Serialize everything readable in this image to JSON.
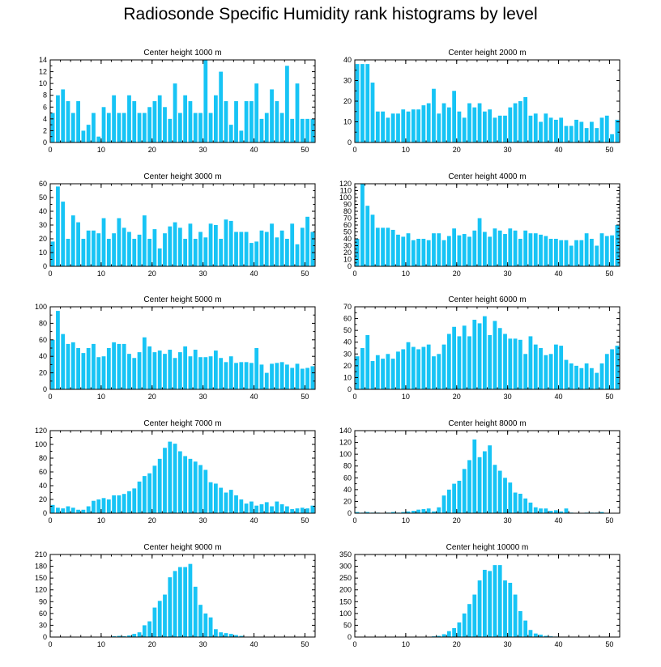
{
  "figure_title": "Radiosonde Specific Humidity rank histograms by level",
  "bar_color": "#17C4F5",
  "chart_data": [
    {
      "type": "bar",
      "title": "Center height 1000 m",
      "xlim": [
        0,
        52
      ],
      "xticks": [
        0,
        10,
        20,
        30,
        40,
        50
      ],
      "ylim": [
        0,
        14
      ],
      "yticks": [
        0,
        2,
        4,
        6,
        8,
        10,
        12,
        14
      ],
      "x": [
        0,
        1,
        2,
        3,
        4,
        5,
        6,
        7,
        8,
        9,
        10,
        11,
        12,
        13,
        14,
        15,
        16,
        17,
        18,
        19,
        20,
        21,
        22,
        23,
        24,
        25,
        26,
        27,
        28,
        29,
        30,
        31,
        32,
        33,
        34,
        35,
        36,
        37,
        38,
        39,
        40,
        41,
        42,
        43,
        44,
        45,
        46,
        47,
        48,
        49,
        50,
        51
      ],
      "values": [
        5,
        8,
        9,
        7,
        5,
        7,
        2,
        3,
        5,
        1,
        6,
        5,
        8,
        5,
        5,
        8,
        7,
        5,
        5,
        6,
        7,
        8,
        6,
        4,
        10,
        5,
        8,
        7,
        5,
        5,
        14,
        5,
        8,
        12,
        7,
        3,
        7,
        2,
        7,
        7,
        10,
        4,
        5,
        9,
        7,
        5,
        13,
        4,
        10,
        4,
        4,
        4
      ]
    },
    {
      "type": "bar",
      "title": "Center height 2000 m",
      "xlim": [
        0,
        52
      ],
      "xticks": [
        0,
        10,
        20,
        30,
        40,
        50
      ],
      "ylim": [
        0,
        40
      ],
      "yticks": [
        0,
        10,
        20,
        30,
        40
      ],
      "x": [
        0,
        1,
        2,
        3,
        4,
        5,
        6,
        7,
        8,
        9,
        10,
        11,
        12,
        13,
        14,
        15,
        16,
        17,
        18,
        19,
        20,
        21,
        22,
        23,
        24,
        25,
        26,
        27,
        28,
        29,
        30,
        31,
        32,
        33,
        34,
        35,
        36,
        37,
        38,
        39,
        40,
        41,
        42,
        43,
        44,
        45,
        46,
        47,
        48,
        49,
        50,
        51
      ],
      "values": [
        38,
        38,
        38,
        29,
        15,
        15,
        12,
        14,
        14,
        16,
        15,
        16,
        16,
        18,
        19,
        26,
        14,
        19,
        17,
        25,
        15,
        12,
        19,
        17,
        19,
        15,
        16,
        12,
        13,
        13,
        17,
        19,
        20,
        22,
        13,
        14,
        10,
        14,
        12,
        11,
        12,
        8,
        8,
        11,
        10,
        7,
        10,
        7,
        12,
        13,
        4,
        11
      ]
    },
    {
      "type": "bar",
      "title": "Center height 3000 m",
      "xlim": [
        0,
        52
      ],
      "xticks": [
        0,
        10,
        20,
        30,
        40,
        50
      ],
      "ylim": [
        0,
        60
      ],
      "yticks": [
        0,
        10,
        20,
        30,
        40,
        50,
        60
      ],
      "x": [
        0,
        1,
        2,
        3,
        4,
        5,
        6,
        7,
        8,
        9,
        10,
        11,
        12,
        13,
        14,
        15,
        16,
        17,
        18,
        19,
        20,
        21,
        22,
        23,
        24,
        25,
        26,
        27,
        28,
        29,
        30,
        31,
        32,
        33,
        34,
        35,
        36,
        37,
        38,
        39,
        40,
        41,
        42,
        43,
        44,
        45,
        46,
        47,
        48,
        49,
        50,
        51
      ],
      "values": [
        18,
        58,
        47,
        20,
        37,
        32,
        20,
        26,
        26,
        24,
        35,
        20,
        24,
        35,
        28,
        25,
        20,
        23,
        37,
        20,
        27,
        13,
        24,
        29,
        32,
        28,
        20,
        31,
        20,
        25,
        21,
        31,
        30,
        20,
        34,
        33,
        25,
        25,
        25,
        17,
        18,
        26,
        25,
        31,
        21,
        26,
        20,
        31,
        16,
        28,
        36,
        25
      ]
    },
    {
      "type": "bar",
      "title": "Center height 4000 m",
      "xlim": [
        0,
        52
      ],
      "xticks": [
        0,
        10,
        20,
        30,
        40,
        50
      ],
      "ylim": [
        0,
        120
      ],
      "yticks": [
        0,
        10,
        20,
        30,
        40,
        50,
        60,
        70,
        80,
        90,
        100,
        110,
        120
      ],
      "x": [
        0,
        1,
        2,
        3,
        4,
        5,
        6,
        7,
        8,
        9,
        10,
        11,
        12,
        13,
        14,
        15,
        16,
        17,
        18,
        19,
        20,
        21,
        22,
        23,
        24,
        25,
        26,
        27,
        28,
        29,
        30,
        31,
        32,
        33,
        34,
        35,
        36,
        37,
        38,
        39,
        40,
        41,
        42,
        43,
        44,
        45,
        46,
        47,
        48,
        49,
        50,
        51
      ],
      "values": [
        40,
        120,
        88,
        75,
        56,
        56,
        56,
        53,
        46,
        43,
        48,
        38,
        40,
        40,
        38,
        48,
        48,
        38,
        44,
        55,
        45,
        47,
        43,
        52,
        70,
        50,
        43,
        55,
        52,
        47,
        55,
        52,
        40,
        52,
        48,
        48,
        46,
        44,
        40,
        40,
        38,
        38,
        30,
        38,
        38,
        48,
        40,
        30,
        48,
        44,
        45,
        60
      ]
    },
    {
      "type": "bar",
      "title": "Center height 5000 m",
      "xlim": [
        0,
        52
      ],
      "xticks": [
        0,
        10,
        20,
        30,
        40,
        50
      ],
      "ylim": [
        0,
        100
      ],
      "yticks": [
        0,
        20,
        40,
        60,
        80,
        100
      ],
      "x": [
        0,
        1,
        2,
        3,
        4,
        5,
        6,
        7,
        8,
        9,
        10,
        11,
        12,
        13,
        14,
        15,
        16,
        17,
        18,
        19,
        20,
        21,
        22,
        23,
        24,
        25,
        26,
        27,
        28,
        29,
        30,
        31,
        32,
        33,
        34,
        35,
        36,
        37,
        38,
        39,
        40,
        41,
        42,
        43,
        44,
        45,
        46,
        47,
        48,
        49,
        50,
        51
      ],
      "values": [
        60,
        95,
        67,
        55,
        57,
        50,
        44,
        50,
        55,
        39,
        40,
        50,
        57,
        55,
        55,
        43,
        38,
        45,
        63,
        52,
        45,
        47,
        43,
        48,
        38,
        45,
        52,
        40,
        48,
        39,
        39,
        40,
        47,
        38,
        33,
        40,
        32,
        33,
        33,
        32,
        50,
        30,
        20,
        31,
        32,
        33,
        30,
        26,
        31,
        25,
        26,
        28
      ]
    },
    {
      "type": "bar",
      "title": "Center height 6000 m",
      "xlim": [
        0,
        52
      ],
      "xticks": [
        0,
        10,
        20,
        30,
        40,
        50
      ],
      "ylim": [
        0,
        70
      ],
      "yticks": [
        0,
        10,
        20,
        30,
        40,
        50,
        60,
        70
      ],
      "x": [
        0,
        1,
        2,
        3,
        4,
        5,
        6,
        7,
        8,
        9,
        10,
        11,
        12,
        13,
        14,
        15,
        16,
        17,
        18,
        19,
        20,
        21,
        22,
        23,
        24,
        25,
        26,
        27,
        28,
        29,
        30,
        31,
        32,
        33,
        34,
        35,
        36,
        37,
        38,
        39,
        40,
        41,
        42,
        43,
        44,
        45,
        46,
        47,
        48,
        49,
        50,
        51
      ],
      "values": [
        28,
        35,
        46,
        24,
        29,
        26,
        30,
        26,
        32,
        34,
        40,
        36,
        34,
        36,
        38,
        28,
        30,
        38,
        47,
        53,
        45,
        54,
        45,
        59,
        56,
        62,
        46,
        58,
        52,
        47,
        43,
        43,
        42,
        30,
        45,
        38,
        35,
        29,
        30,
        38,
        37,
        25,
        22,
        20,
        18,
        22,
        18,
        14,
        22,
        30,
        34,
        37
      ]
    },
    {
      "type": "bar",
      "title": "Center height 7000 m",
      "xlim": [
        0,
        52
      ],
      "xticks": [
        0,
        10,
        20,
        30,
        40,
        50
      ],
      "ylim": [
        0,
        120
      ],
      "yticks": [
        0,
        20,
        40,
        60,
        80,
        100,
        120
      ],
      "x": [
        0,
        1,
        2,
        3,
        4,
        5,
        6,
        7,
        8,
        9,
        10,
        11,
        12,
        13,
        14,
        15,
        16,
        17,
        18,
        19,
        20,
        21,
        22,
        23,
        24,
        25,
        26,
        27,
        28,
        29,
        30,
        31,
        32,
        33,
        34,
        35,
        36,
        37,
        38,
        39,
        40,
        41,
        42,
        43,
        44,
        45,
        46,
        47,
        48,
        49,
        50,
        51
      ],
      "values": [
        12,
        8,
        7,
        10,
        8,
        5,
        5,
        10,
        18,
        20,
        22,
        20,
        26,
        26,
        28,
        32,
        36,
        46,
        54,
        58,
        69,
        79,
        95,
        104,
        101,
        90,
        83,
        79,
        75,
        70,
        63,
        45,
        43,
        37,
        30,
        34,
        26,
        20,
        14,
        17,
        11,
        13,
        16,
        10,
        17,
        13,
        10,
        6,
        7,
        8,
        7,
        11
      ]
    },
    {
      "type": "bar",
      "title": "Center height 8000 m",
      "xlim": [
        0,
        52
      ],
      "xticks": [
        0,
        10,
        20,
        30,
        40,
        50
      ],
      "ylim": [
        0,
        140
      ],
      "yticks": [
        0,
        20,
        40,
        60,
        80,
        100,
        120,
        140
      ],
      "x": [
        0,
        1,
        2,
        3,
        4,
        5,
        6,
        7,
        8,
        9,
        10,
        11,
        12,
        13,
        14,
        15,
        16,
        17,
        18,
        19,
        20,
        21,
        22,
        23,
        24,
        25,
        26,
        27,
        28,
        29,
        30,
        31,
        32,
        33,
        34,
        35,
        36,
        37,
        38,
        39,
        40,
        41,
        42,
        43,
        44,
        45,
        46,
        47,
        48,
        49,
        50,
        51
      ],
      "values": [
        2,
        1,
        2,
        1,
        1,
        0,
        1,
        2,
        1,
        2,
        3,
        4,
        6,
        7,
        8,
        3,
        10,
        30,
        40,
        50,
        55,
        75,
        90,
        125,
        95,
        105,
        115,
        82,
        72,
        60,
        52,
        35,
        33,
        25,
        18,
        10,
        8,
        8,
        4,
        5,
        3,
        8,
        1,
        0,
        0,
        1,
        1,
        1,
        2,
        0,
        0,
        0
      ]
    },
    {
      "type": "bar",
      "title": "Center height 9000 m",
      "xlim": [
        0,
        52
      ],
      "xticks": [
        0,
        10,
        20,
        30,
        40,
        50
      ],
      "ylim": [
        0,
        210
      ],
      "yticks": [
        0,
        30,
        60,
        90,
        120,
        150,
        180,
        210
      ],
      "x": [
        0,
        1,
        2,
        3,
        4,
        5,
        6,
        7,
        8,
        9,
        10,
        11,
        12,
        13,
        14,
        15,
        16,
        17,
        18,
        19,
        20,
        21,
        22,
        23,
        24,
        25,
        26,
        27,
        28,
        29,
        30,
        31,
        32,
        33,
        34,
        35,
        36,
        37,
        38,
        39,
        40,
        41,
        42,
        43,
        44,
        45,
        46,
        47,
        48,
        49,
        50,
        51
      ],
      "values": [
        0,
        0,
        0,
        0,
        0,
        0,
        0,
        0,
        0,
        0,
        0,
        1,
        2,
        3,
        2,
        4,
        8,
        12,
        30,
        40,
        75,
        92,
        108,
        152,
        168,
        178,
        178,
        186,
        128,
        82,
        60,
        50,
        20,
        12,
        10,
        8,
        5,
        3,
        1,
        0,
        0,
        0,
        0,
        0,
        0,
        0,
        0,
        0,
        0,
        0,
        0,
        0
      ]
    },
    {
      "type": "bar",
      "title": "Center height 10000 m",
      "xlim": [
        0,
        52
      ],
      "xticks": [
        0,
        10,
        20,
        30,
        40,
        50
      ],
      "ylim": [
        0,
        350
      ],
      "yticks": [
        0,
        50,
        100,
        150,
        200,
        250,
        300,
        350
      ],
      "x": [
        0,
        1,
        2,
        3,
        4,
        5,
        6,
        7,
        8,
        9,
        10,
        11,
        12,
        13,
        14,
        15,
        16,
        17,
        18,
        19,
        20,
        21,
        22,
        23,
        24,
        25,
        26,
        27,
        28,
        29,
        30,
        31,
        32,
        33,
        34,
        35,
        36,
        37,
        38,
        39,
        40,
        41,
        42,
        43,
        44,
        45,
        46,
        47,
        48,
        49,
        50,
        51
      ],
      "values": [
        0,
        0,
        0,
        0,
        0,
        0,
        0,
        0,
        0,
        0,
        0,
        0,
        0,
        0,
        1,
        3,
        5,
        12,
        25,
        38,
        62,
        100,
        140,
        180,
        240,
        285,
        280,
        305,
        305,
        240,
        230,
        180,
        110,
        70,
        30,
        15,
        10,
        5,
        3,
        2,
        0,
        0,
        0,
        0,
        0,
        0,
        0,
        0,
        0,
        0,
        0,
        0
      ]
    }
  ]
}
